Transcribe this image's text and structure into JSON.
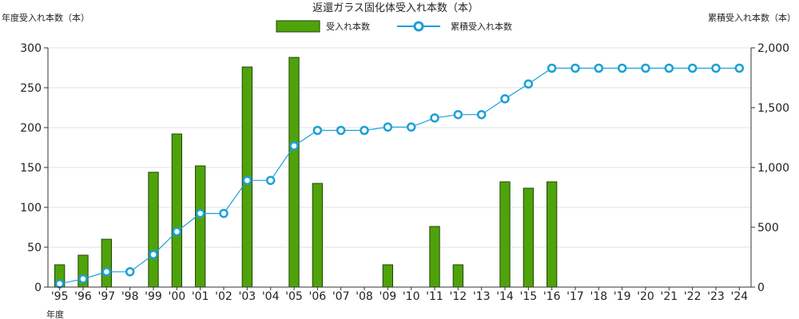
{
  "chart_data": {
    "type": "bar",
    "title": "返還ガラス固化体受入れ本数（本）",
    "xlabel": "年度",
    "ylabel_left": "年度受入れ本数（本）",
    "ylabel_right": "累積受入れ本数（本）",
    "categories": [
      "'95",
      "'96",
      "'97",
      "'98",
      "'99",
      "'00",
      "'01",
      "'02",
      "'03",
      "'04",
      "'05",
      "'06",
      "'07",
      "'08",
      "'09",
      "'10",
      "'11",
      "'12",
      "'13",
      "'14",
      "'15",
      "'16",
      "'17",
      "'18",
      "'19",
      "'20",
      "'21",
      "'22",
      "'23",
      "'24"
    ],
    "left_ylim": [
      0,
      300
    ],
    "left_ticks": [
      "0",
      "50",
      "100",
      "150",
      "200",
      "250",
      "300"
    ],
    "right_ylim": [
      0,
      2000
    ],
    "right_ticks": [
      "0",
      "500",
      "1,000",
      "1,500",
      "2,000"
    ],
    "grid": true,
    "legend_position": "top-center",
    "series": [
      {
        "name": "受入れ本数",
        "type": "bar",
        "axis": "left",
        "color": "#4fa30a",
        "values": [
          28,
          40,
          60,
          0,
          144,
          192,
          152,
          0,
          276,
          0,
          288,
          130,
          0,
          0,
          28,
          0,
          76,
          28,
          0,
          132,
          124,
          132,
          0,
          0,
          0,
          0,
          0,
          0,
          0,
          0
        ]
      },
      {
        "name": "累積受入れ本数",
        "type": "line",
        "axis": "right",
        "color": "#1aa0d8",
        "values": [
          28,
          68,
          128,
          128,
          272,
          464,
          616,
          616,
          892,
          892,
          1180,
          1310,
          1310,
          1310,
          1338,
          1338,
          1414,
          1442,
          1442,
          1574,
          1698,
          1830,
          1830,
          1830,
          1830,
          1830,
          1830,
          1830,
          1830,
          1830
        ]
      }
    ]
  }
}
